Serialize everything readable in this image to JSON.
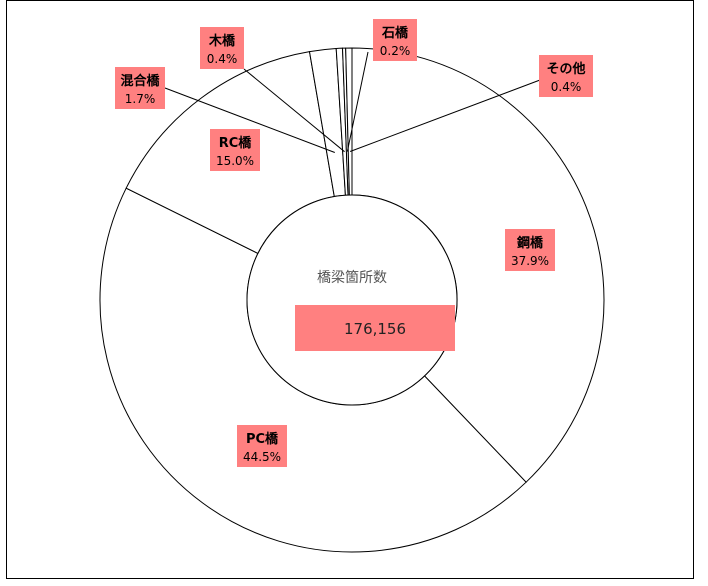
{
  "chart_data": {
    "type": "pie",
    "center_title": "橋梁箇所数",
    "center_value": "176,156",
    "slices": [
      {
        "label": "鋼橋",
        "percent_text": "37.9%",
        "value": 37.9
      },
      {
        "label": "PC橋",
        "percent_text": "44.5%",
        "value": 44.5
      },
      {
        "label": "RC橋",
        "percent_text": "15.0%",
        "value": 15.0
      },
      {
        "label": "混合橋",
        "percent_text": "1.7%",
        "value": 1.7
      },
      {
        "label": "木橋",
        "percent_text": "0.4%",
        "value": 0.4
      },
      {
        "label": "石橋",
        "percent_text": "0.2%",
        "value": 0.2
      },
      {
        "label": "その他",
        "percent_text": "0.4%",
        "value": 0.4
      }
    ],
    "colors": {
      "slice_fill": "#ffffff",
      "stroke": "#000000",
      "label_bg": "#ff8080",
      "center_box": "#ff8080"
    }
  }
}
